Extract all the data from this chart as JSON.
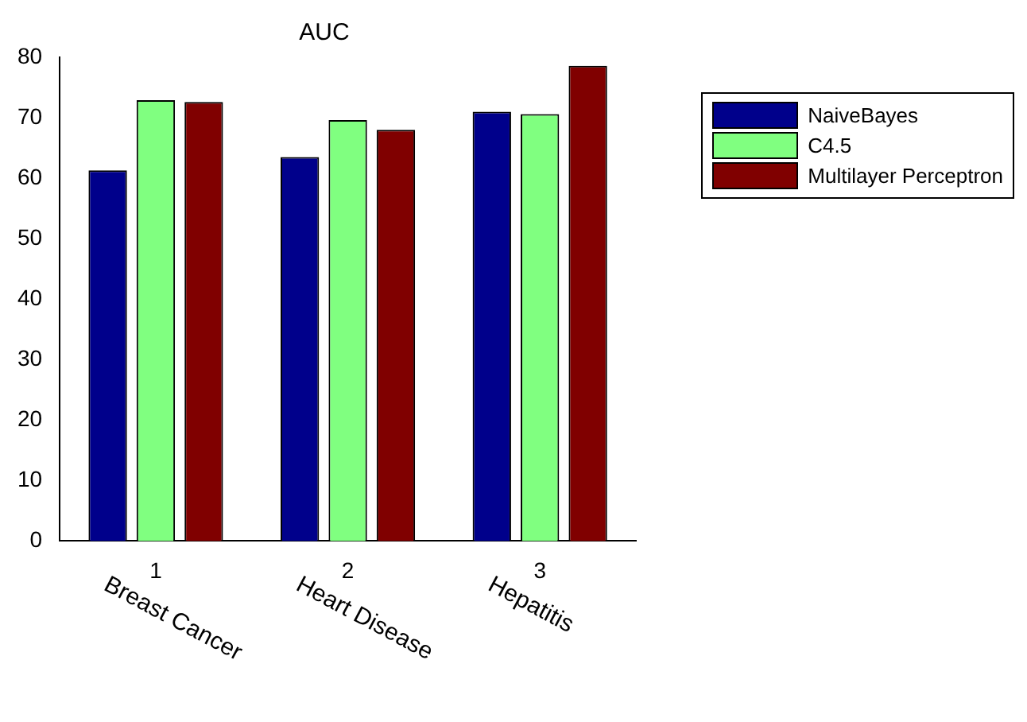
{
  "chart_data": {
    "type": "bar",
    "title": "AUC",
    "categories": [
      "1",
      "2",
      "3"
    ],
    "series": [
      {
        "name": "NaiveBayes",
        "color": "#00008b",
        "values": [
          61.3,
          63.5,
          71.0
        ]
      },
      {
        "name": "C4.5",
        "color": "#80ff80",
        "values": [
          72.9,
          69.6,
          70.6
        ]
      },
      {
        "name": "Multilayer Perceptron",
        "color": "#800000",
        "values": [
          72.6,
          68.0,
          78.6
        ]
      }
    ],
    "ylim": [
      0,
      80
    ],
    "yticks": [
      0,
      10,
      20,
      30,
      40,
      50,
      60,
      70,
      80
    ],
    "grid": false,
    "legend": "top right",
    "annotations": [
      "Breast Cancer",
      "Heart Disease",
      "Hepatitis"
    ]
  }
}
